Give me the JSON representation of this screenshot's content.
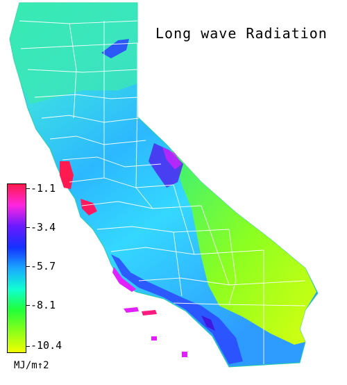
{
  "title": "Long wave Radiation",
  "legend": {
    "units": "MJ/m↑2",
    "ticks": [
      "-1.1",
      "-3.4",
      "-5.7",
      "-8.1",
      "-10.4"
    ],
    "colors": [
      "#ff1a4a",
      "#ff26e0",
      "#6a1aff",
      "#1430ff",
      "#1aa8ff",
      "#10ffd2",
      "#22ff38",
      "#8cff1a",
      "#f0ff00"
    ]
  },
  "regions": {
    "north": "#3ce0c4",
    "bay": "#ff1a50",
    "central_valley": "#36c8ff",
    "sierra": "#4a36f0",
    "coast_south": "#2a6dff",
    "desert": "#9eff2a",
    "mojave_east": "#d6ff14"
  }
}
